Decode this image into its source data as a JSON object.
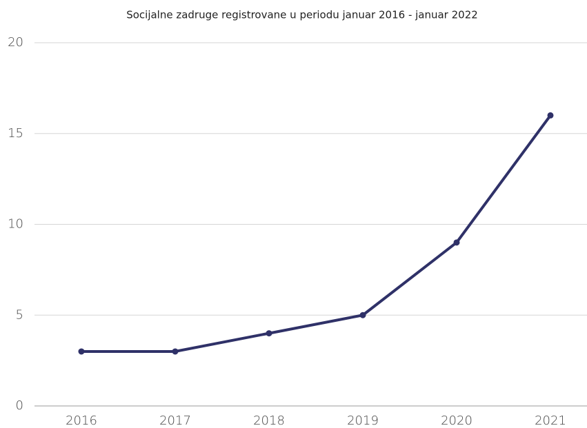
{
  "chart_data": {
    "type": "line",
    "title": "Socijalne zadruge registrovane u periodu januar 2016 -  januar 2022",
    "categories": [
      "2016",
      "2017",
      "2018",
      "2019",
      "2020",
      "2021"
    ],
    "series": [
      {
        "name": null,
        "color": "#2f3168",
        "values": [
          3,
          3,
          4,
          5,
          9,
          16
        ]
      }
    ],
    "ylim": [
      0,
      20
    ],
    "yticks": [
      0,
      5,
      10,
      15,
      20
    ],
    "grid": true
  }
}
